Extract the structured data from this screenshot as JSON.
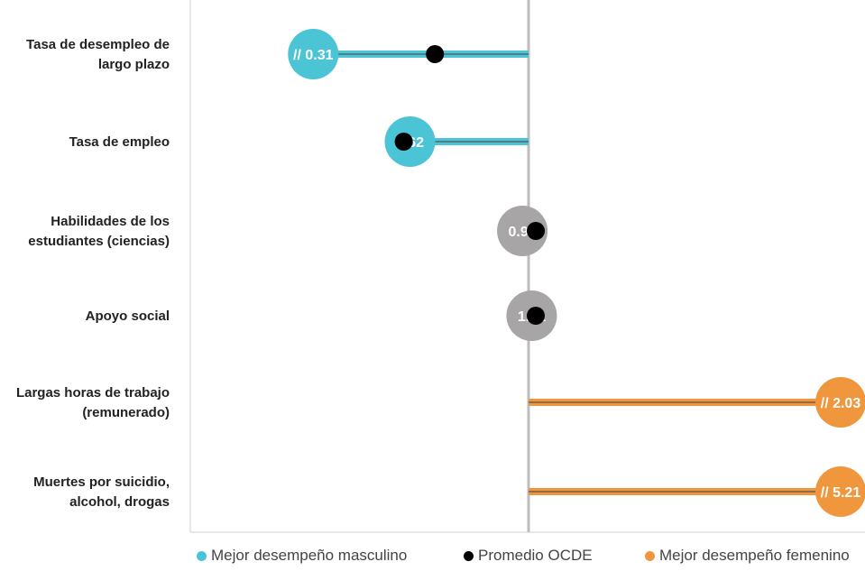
{
  "chart_data": {
    "type": "scatter",
    "categories": [
      [
        "Tasa de desempleo de",
        "largo plazo"
      ],
      [
        "Tasa de empleo"
      ],
      [
        "Habilidades de los",
        "estudiantes (ciencias)"
      ],
      [
        "Apoyo social"
      ],
      [
        "Largas horas de trabajo",
        "(remunerado)"
      ],
      [
        "Muertes por suicidio,",
        "alcohol, drogas"
      ]
    ],
    "series": [
      {
        "name": "Mejor desempeño masculino",
        "color": "#4BC4D6",
        "points": [
          {
            "category": 0,
            "value": 0.31,
            "label": "// 0.31",
            "truncated": true
          },
          {
            "category": 1,
            "value": 0.62,
            "label": "0.62",
            "truncated": false
          }
        ]
      },
      {
        "name": "Promedio OCDE",
        "color": "#000000",
        "points": [
          {
            "category": 0,
            "value": 0.7
          },
          {
            "category": 1,
            "value": 0.6
          },
          {
            "category": 2,
            "value": 1.0
          },
          {
            "category": 3,
            "value": 1.0
          },
          {
            "category": 4,
            "value": 1.0
          },
          {
            "category": 5,
            "value": 1.0
          }
        ]
      },
      {
        "name": "Mejor desempeño femenino",
        "color": "#F0963C",
        "points": [
          {
            "category": 4,
            "value": 2.03,
            "label": "// 2.03",
            "truncated": true
          },
          {
            "category": 5,
            "value": 5.21,
            "label": "// 5.21",
            "truncated": true
          }
        ]
      }
    ],
    "parity": {
      "color": "#A7A5A5",
      "points": [
        {
          "category": 2,
          "value": 0.98,
          "label": "0.98"
        },
        {
          "category": 3,
          "value": 1.01,
          "label": "1.01"
        }
      ]
    },
    "xlim": [
      0,
      2
    ],
    "reference_value": 1.0,
    "grid": false,
    "legend_position": "bottom"
  }
}
